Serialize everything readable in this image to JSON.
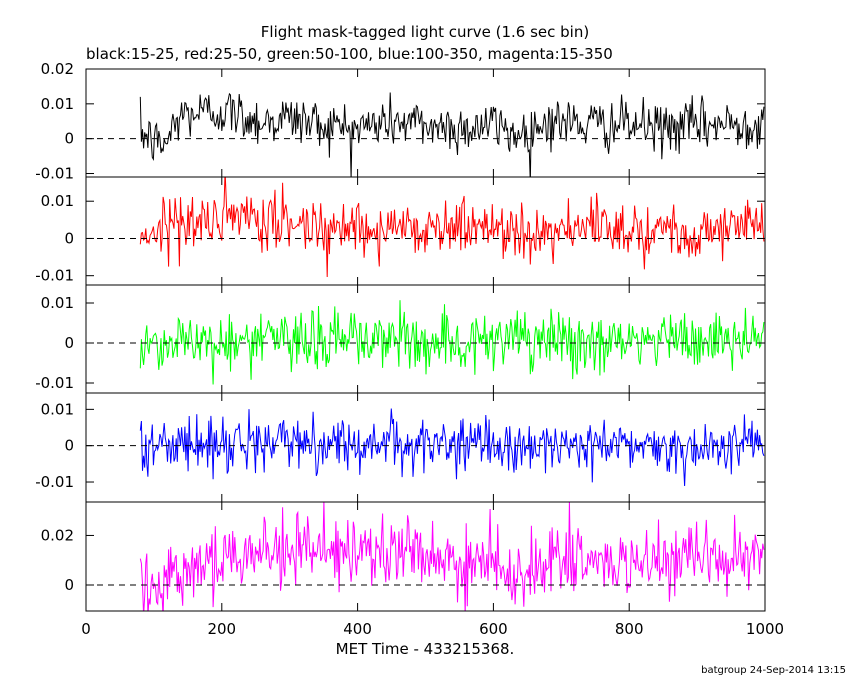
{
  "title": "Flight mask-tagged light curve (1.6 sec bin)",
  "subtitle": "black:15-25, red:25-50, green:50-100, blue:100-350, magenta:15-350",
  "xlabel": "MET Time - 433215368.",
  "footer": "batgroup 24-Sep-2014 13:15",
  "chart_data": {
    "type": "line",
    "title": "Flight mask-tagged light curve (1.6 sec bin)",
    "subtitle": "black:15-25, red:25-50, green:50-100, blue:100-350, magenta:15-350",
    "xlabel": "MET Time - 433215368.",
    "ylabel": "",
    "x_start": 80,
    "x_end": 1000,
    "x_step": 1.6,
    "xlim": [
      0,
      1000
    ],
    "x_ticks": [
      0,
      200,
      400,
      600,
      800,
      1000
    ],
    "x_tick_labels": [
      "0",
      "200",
      "400",
      "600",
      "800",
      "1000"
    ],
    "grid": false,
    "panels": [
      {
        "name": "black:15-25",
        "color": "#000000",
        "ylim": [
          -0.011,
          0.02
        ],
        "y_ticks": [
          -0.01,
          0,
          0.01,
          0.02
        ],
        "y_tick_labels": [
          "-0.01",
          "0",
          "0.01",
          "0.02"
        ],
        "baseline": 0,
        "noise": 0.0036,
        "trend": [
          [
            80,
            0.002
          ],
          [
            100,
            -0.001
          ],
          [
            115,
            -0.002
          ],
          [
            140,
            0.007
          ],
          [
            200,
            0.008
          ],
          [
            260,
            0.005
          ],
          [
            300,
            0.006
          ],
          [
            350,
            0.004
          ],
          [
            400,
            0.003
          ],
          [
            450,
            0.005
          ],
          [
            500,
            0.004
          ],
          [
            550,
            0.003
          ],
          [
            600,
            0.004
          ],
          [
            640,
            0.001
          ],
          [
            680,
            0.005
          ],
          [
            750,
            0.004
          ],
          [
            800,
            0.004
          ],
          [
            850,
            0.003
          ],
          [
            900,
            0.004
          ],
          [
            950,
            0.004
          ],
          [
            1000,
            0.005
          ]
        ]
      },
      {
        "name": "red:25-50",
        "color": "#ff0000",
        "ylim": [
          -0.0125,
          0.0165
        ],
        "y_ticks": [
          -0.01,
          0,
          0.01
        ],
        "y_tick_labels": [
          "-0.01",
          "0",
          "0.01"
        ],
        "baseline": 0,
        "noise": 0.0038,
        "trend": [
          [
            80,
            0.001
          ],
          [
            120,
            0.004
          ],
          [
            200,
            0.005
          ],
          [
            300,
            0.004
          ],
          [
            400,
            0.003
          ],
          [
            500,
            0.003
          ],
          [
            600,
            0.003
          ],
          [
            700,
            0.002
          ],
          [
            800,
            0.003
          ],
          [
            900,
            0.002
          ],
          [
            1000,
            0.004
          ]
        ]
      },
      {
        "name": "green:50-100",
        "color": "#00ff00",
        "ylim": [
          -0.0125,
          0.0145
        ],
        "y_ticks": [
          -0.01,
          0,
          0.01
        ],
        "y_tick_labels": [
          "-0.01",
          "0",
          "0.01"
        ],
        "baseline": 0,
        "noise": 0.0038,
        "trend": [
          [
            80,
            0.0
          ],
          [
            400,
            0.001
          ],
          [
            700,
            0.0
          ],
          [
            1000,
            0.001
          ]
        ]
      },
      {
        "name": "blue:100-350",
        "color": "#0000ff",
        "ylim": [
          -0.0155,
          0.0145
        ],
        "y_ticks": [
          -0.01,
          0,
          0.01
        ],
        "y_tick_labels": [
          "-0.01",
          "0",
          "0.01"
        ],
        "baseline": 0,
        "noise": 0.0036,
        "trend": [
          [
            80,
            0.0
          ],
          [
            300,
            0.001
          ],
          [
            600,
            0.0
          ],
          [
            1000,
            0.0
          ]
        ]
      },
      {
        "name": "magenta:15-350",
        "color": "#ff00ff",
        "ylim": [
          -0.0105,
          0.0335
        ],
        "y_ticks": [
          0,
          0.02
        ],
        "y_tick_labels": [
          "0",
          "0.02"
        ],
        "baseline": 0,
        "noise": 0.0072,
        "trend": [
          [
            80,
            0.004
          ],
          [
            100,
            -0.002
          ],
          [
            120,
            0.005
          ],
          [
            200,
            0.012
          ],
          [
            320,
            0.016
          ],
          [
            400,
            0.01
          ],
          [
            450,
            0.014
          ],
          [
            550,
            0.009
          ],
          [
            650,
            0.006
          ],
          [
            700,
            0.01
          ],
          [
            800,
            0.008
          ],
          [
            900,
            0.009
          ],
          [
            1000,
            0.012
          ]
        ]
      }
    ]
  }
}
